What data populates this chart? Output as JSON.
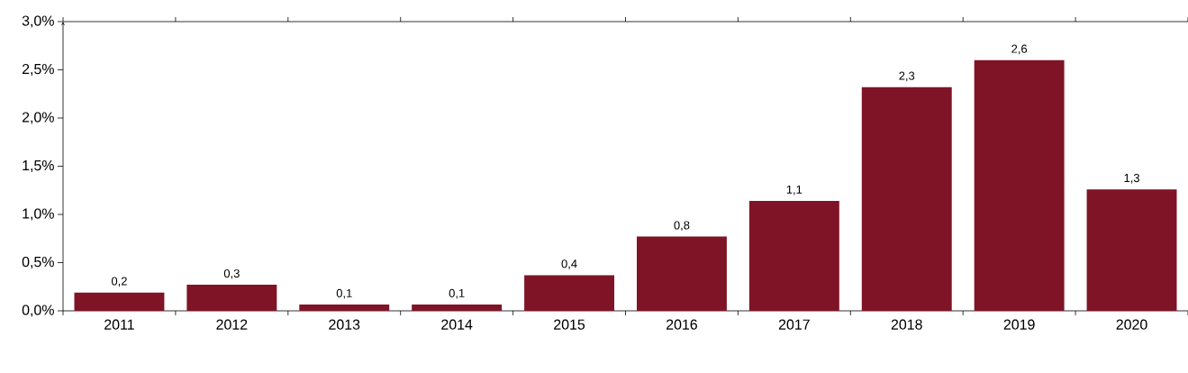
{
  "chart_data": {
    "type": "bar",
    "categories": [
      "2011",
      "2012",
      "2013",
      "2014",
      "2015",
      "2016",
      "2017",
      "2018",
      "2019",
      "2020"
    ],
    "values": [
      0.19,
      0.27,
      0.065,
      0.065,
      0.37,
      0.77,
      1.14,
      2.32,
      2.6,
      1.26
    ],
    "value_labels": [
      "0,2",
      "0,3",
      "0,1",
      "0,1",
      "0,4",
      "0,8",
      "1,1",
      "2,3",
      "2,6",
      "1,3"
    ],
    "color": "#7f1427",
    "ylim": [
      0,
      3
    ],
    "yticks": [
      {
        "value": 0,
        "label": "0,0%"
      },
      {
        "value": 0.5,
        "label": "0,5%"
      },
      {
        "value": 1,
        "label": "1,0%"
      },
      {
        "value": 1.5,
        "label": "1,5%"
      },
      {
        "value": 2,
        "label": "2,0%"
      },
      {
        "value": 2.5,
        "label": "2,5%"
      },
      {
        "value": 3,
        "label": "3,0%"
      }
    ],
    "grid": false
  }
}
